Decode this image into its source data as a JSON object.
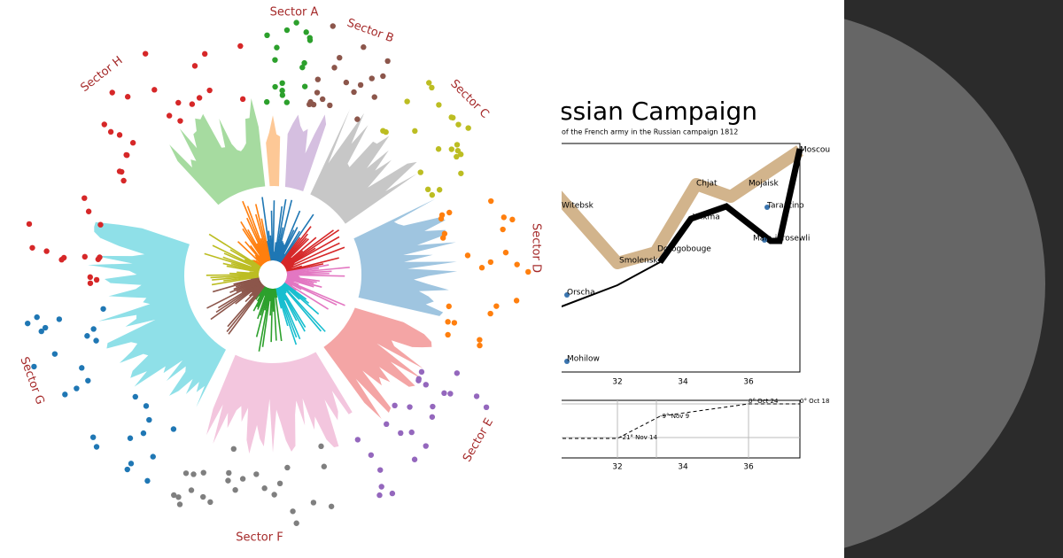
{
  "left_panel": {
    "sector_labels": [
      "Sector A",
      "Sector B",
      "Sector C",
      "Sector D",
      "Sector E",
      "Sector F",
      "Sector G",
      "Sector H"
    ]
  },
  "right_panel": {
    "title": "ssian Campaign",
    "subtitle": "of the French army in the Russian campaign 1812",
    "cities": [
      "Witebsk",
      "Chjat",
      "Mojaisk",
      "Moscou",
      "Tarantino",
      "Wixma",
      "Malo-jarosewli",
      "Smolensk",
      "Dorogobouge",
      "Orscha",
      "Mohilow"
    ],
    "x_tick_labels": [
      32,
      34,
      36
    ],
    "temperature_labels": [
      "0° Oct 18",
      "0° Oct 24",
      "-9° Nov 9",
      "-21° Nov 14"
    ]
  }
}
